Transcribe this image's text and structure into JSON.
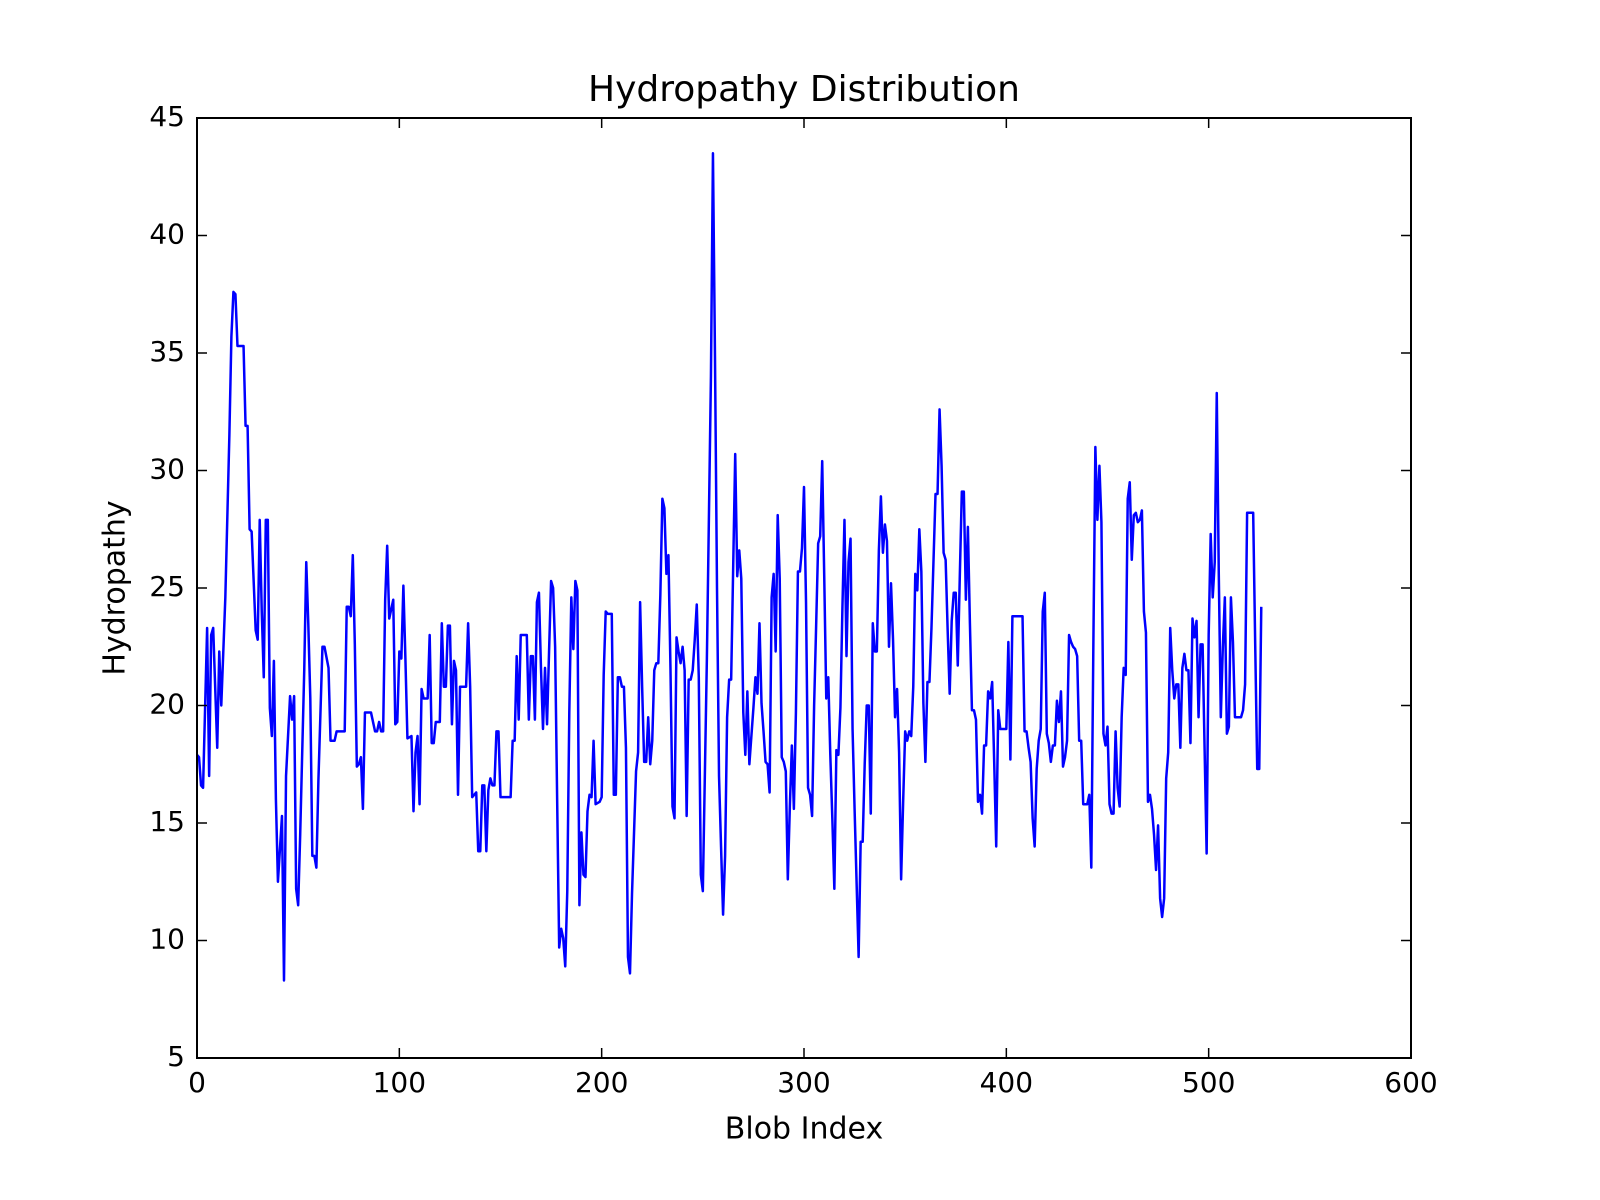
{
  "chart_data": {
    "type": "line",
    "title": "Hydropathy Distribution",
    "xlabel": "Blob Index",
    "ylabel": "Hydropathy",
    "x": [
      0,
      1,
      2,
      3,
      5,
      6,
      7,
      8,
      10,
      11,
      12,
      14,
      16,
      17,
      18,
      19,
      20,
      23,
      24,
      25,
      26,
      27,
      29,
      30,
      31,
      32,
      33,
      34,
      35,
      36,
      37,
      38,
      39,
      40,
      42,
      43,
      44,
      46,
      47,
      48,
      49,
      50,
      51,
      53,
      54,
      55,
      56,
      57,
      58,
      59,
      60,
      62,
      63,
      65,
      66,
      68,
      69,
      73,
      74,
      75,
      76,
      77,
      78,
      79,
      80,
      81,
      82,
      83,
      86,
      88,
      89,
      90,
      91,
      92,
      93,
      94,
      95,
      97,
      98,
      99,
      100,
      101,
      102,
      103,
      104,
      106,
      107,
      108,
      109,
      110,
      111,
      112,
      114,
      115,
      116,
      117,
      118,
      120,
      121,
      122,
      123,
      124,
      125,
      126,
      127,
      128,
      129,
      130,
      133,
      134,
      135,
      136,
      137,
      138,
      139,
      140,
      141,
      142,
      143,
      144,
      145,
      146,
      147,
      148,
      149,
      150,
      155,
      156,
      157,
      158,
      159,
      160,
      163,
      164,
      165,
      166,
      167,
      168,
      169,
      170,
      171,
      172,
      173,
      174,
      175,
      176,
      177,
      178,
      179,
      180,
      181,
      182,
      183,
      184,
      185,
      186,
      187,
      188,
      189,
      190,
      191,
      192,
      193,
      194,
      195,
      196,
      197,
      199,
      200,
      201,
      202,
      203,
      205,
      206,
      207,
      208,
      209,
      210,
      211,
      212,
      213,
      214,
      215,
      217,
      218,
      219,
      220,
      221,
      222,
      223,
      224,
      225,
      226,
      227,
      228,
      229,
      230,
      231,
      232,
      233,
      234,
      235,
      236,
      237,
      238,
      239,
      240,
      241,
      242,
      243,
      244,
      245,
      246,
      247,
      248,
      249,
      250,
      252,
      254,
      255,
      256,
      257,
      258,
      259,
      260,
      261,
      262,
      263,
      264,
      266,
      267,
      268,
      269,
      270,
      271,
      272,
      273,
      274,
      275,
      276,
      277,
      278,
      279,
      280,
      281,
      282,
      283,
      284,
      285,
      286,
      287,
      288,
      289,
      290,
      291,
      292,
      293,
      294,
      295,
      296,
      297,
      298,
      299,
      300,
      301,
      302,
      303,
      304,
      305,
      306,
      307,
      308,
      309,
      310,
      311,
      312,
      313,
      314,
      315,
      316,
      317,
      318,
      319,
      320,
      321,
      322,
      323,
      324,
      325,
      327,
      328,
      329,
      330,
      331,
      332,
      333,
      334,
      335,
      336,
      337,
      338,
      339,
      340,
      341,
      342,
      343,
      344,
      345,
      346,
      347,
      348,
      349,
      350,
      351,
      352,
      353,
      354,
      355,
      356,
      357,
      358,
      359,
      360,
      361,
      362,
      363,
      365,
      366,
      367,
      368,
      369,
      370,
      371,
      372,
      373,
      374,
      375,
      376,
      377,
      378,
      379,
      380,
      381,
      382,
      383,
      384,
      385,
      386,
      387,
      388,
      389,
      390,
      391,
      392,
      393,
      394,
      395,
      396,
      397,
      400,
      401,
      402,
      403,
      408,
      409,
      410,
      411,
      412,
      413,
      414,
      415,
      416,
      417,
      418,
      419,
      420,
      421,
      422,
      423,
      424,
      425,
      426,
      427,
      428,
      429,
      430,
      431,
      432,
      433,
      434,
      435,
      436,
      437,
      438,
      440,
      441,
      442,
      443,
      444,
      445,
      446,
      447,
      448,
      449,
      450,
      451,
      452,
      453,
      454,
      455,
      456,
      457,
      458,
      459,
      460,
      461,
      462,
      463,
      464,
      465,
      466,
      467,
      468,
      469,
      470,
      471,
      472,
      473,
      474,
      475,
      476,
      477,
      478,
      479,
      480,
      481,
      482,
      483,
      484,
      485,
      486,
      487,
      488,
      489,
      490,
      491,
      492,
      493,
      494,
      495,
      496,
      497,
      498,
      499,
      500,
      501,
      502,
      503,
      504,
      505,
      506,
      507,
      508,
      509,
      510,
      511,
      512,
      513,
      516,
      517,
      518,
      519,
      522,
      523,
      524,
      525,
      526
    ],
    "values": [
      17.9,
      17.8,
      16.6,
      16.5,
      23.3,
      17,
      23,
      23.3,
      18.2,
      22.3,
      20,
      24.6,
      31.5,
      35.7,
      37.6,
      37.5,
      35.3,
      35.3,
      31.9,
      31.9,
      27.5,
      27.4,
      23.2,
      22.8,
      27.9,
      24,
      21.2,
      27.9,
      27.9,
      19.9,
      18.7,
      21.9,
      16,
      12.5,
      15.3,
      8.3,
      17,
      20.4,
      19.4,
      20.4,
      12.2,
      11.5,
      14.5,
      21.5,
      26.1,
      23.5,
      20.3,
      13.6,
      13.6,
      13.1,
      16.8,
      22.5,
      22.5,
      21.6,
      18.5,
      18.5,
      18.9,
      18.9,
      24.2,
      24.2,
      23.8,
      26.4,
      22.6,
      17.4,
      17.5,
      17.8,
      15.6,
      19.7,
      19.7,
      18.9,
      18.9,
      19.3,
      18.9,
      18.9,
      24.5,
      26.8,
      23.7,
      24.5,
      19.2,
      19.3,
      22.3,
      22,
      25.1,
      22,
      18.6,
      18.7,
      15.5,
      18,
      18.7,
      15.8,
      20.7,
      20.3,
      20.3,
      23,
      18.4,
      18.4,
      19.3,
      19.3,
      23.5,
      20.8,
      20.8,
      23.4,
      23.4,
      19.2,
      21.9,
      21.5,
      16.2,
      20.8,
      20.8,
      23.5,
      20.8,
      16.1,
      16.2,
      16.3,
      13.8,
      13.8,
      16.6,
      16.6,
      13.8,
      16.4,
      16.9,
      16.6,
      16.6,
      18.9,
      18.9,
      16.1,
      16.1,
      18.5,
      18.5,
      22.1,
      19.4,
      23,
      23,
      19.4,
      22.1,
      22.1,
      19.4,
      24.4,
      24.8,
      21.6,
      19,
      21.6,
      19.2,
      22.3,
      25.3,
      25,
      22.5,
      16,
      9.7,
      10.5,
      10.1,
      8.9,
      12.1,
      19.7,
      24.6,
      22.4,
      25.3,
      24.9,
      11.5,
      14.6,
      12.8,
      12.7,
      15.5,
      16.2,
      16.1,
      18.5,
      15.8,
      15.9,
      16.1,
      21.3,
      24,
      23.9,
      23.9,
      16.2,
      16.2,
      21.2,
      21.2,
      20.8,
      20.8,
      18.2,
      9.3,
      8.6,
      12,
      17.2,
      18,
      24.4,
      20.8,
      17.6,
      17.6,
      19.5,
      17.5,
      18.5,
      21.5,
      21.8,
      21.8,
      24.7,
      28.8,
      28.4,
      25.6,
      26.4,
      21.6,
      15.7,
      15.2,
      22.9,
      22.3,
      21.8,
      22.5,
      21.5,
      15.3,
      21.1,
      21.1,
      21.5,
      22.8,
      24.3,
      21.2,
      12.8,
      12.1,
      22,
      34,
      43.5,
      34.9,
      25,
      17,
      14,
      11.1,
      13.6,
      19.5,
      21.1,
      21.1,
      30.7,
      25.5,
      26.6,
      25.4,
      19.7,
      17.9,
      20.6,
      17.5,
      18.7,
      19.9,
      21.2,
      20.5,
      23.5,
      20.1,
      18.9,
      17.6,
      17.5,
      16.3,
      24.6,
      25.6,
      22.3,
      28.1,
      25.4,
      17.8,
      17.6,
      17.2,
      12.6,
      15.7,
      18.3,
      15.6,
      19.7,
      25.7,
      25.7,
      26.7,
      29.3,
      24.4,
      16.5,
      16.2,
      15.3,
      20,
      23.4,
      26.9,
      27.2,
      30.4,
      25.5,
      20.3,
      21.2,
      17.9,
      15.2,
      12.2,
      18.1,
      17.9,
      19.9,
      24.2,
      27.9,
      22.1,
      26.1,
      27.1,
      19,
      15.6,
      9.3,
      14.2,
      14.2,
      17.5,
      20,
      20,
      15.4,
      23.5,
      22.3,
      22.3,
      26.6,
      28.9,
      26.5,
      27.7,
      27,
      22.5,
      25.2,
      22.8,
      19.5,
      20.7,
      18,
      12.6,
      15.9,
      18.9,
      18.5,
      18.9,
      18.7,
      20.8,
      25.6,
      24.9,
      27.5,
      25.7,
      20.1,
      17.6,
      21,
      21,
      23.3,
      29,
      29,
      32.6,
      30.2,
      26.5,
      26.2,
      23.2,
      20.5,
      23.6,
      24.8,
      24.8,
      21.7,
      25.5,
      29.1,
      29.1,
      24.5,
      27.6,
      23.5,
      19.8,
      19.8,
      19.4,
      15.9,
      16.2,
      15.4,
      18.3,
      18.3,
      20.6,
      20.3,
      21,
      17.6,
      14,
      19.8,
      19,
      19,
      22.7,
      17.7,
      23.8,
      23.8,
      18.9,
      18.9,
      18.2,
      17.6,
      15.2,
      14,
      17.3,
      18.5,
      19,
      24,
      24.8,
      18.8,
      18.4,
      17.6,
      18.3,
      18.3,
      20.2,
      19.3,
      20.6,
      17.4,
      17.8,
      18.5,
      23,
      22.7,
      22.5,
      22.4,
      22.1,
      18.5,
      18.5,
      15.8,
      15.8,
      16.2,
      13.1,
      22.5,
      31,
      27.9,
      30.2,
      27.8,
      18.8,
      18.3,
      19.1,
      15.8,
      15.4,
      15.4,
      18.9,
      16.5,
      15.7,
      19.5,
      21.6,
      21.3,
      28.8,
      29.5,
      26.2,
      28.1,
      28.2,
      27.8,
      27.9,
      28.3,
      24,
      23.1,
      15.9,
      16.2,
      15.6,
      14.5,
      13,
      14.9,
      11.8,
      11,
      11.8,
      16.9,
      18,
      23.3,
      21.5,
      20.3,
      20.9,
      20.9,
      18.2,
      21.6,
      22.2,
      21.5,
      21.5,
      18.4,
      23.7,
      22.9,
      23.6,
      19.5,
      22.6,
      22.6,
      18.1,
      13.7,
      23,
      27.3,
      24.6,
      26.1,
      33.3,
      25.6,
      19.5,
      22.5,
      24.6,
      18.8,
      19.1,
      24.6,
      22.7,
      19.5,
      19.5,
      19.8,
      20.9,
      28.2,
      28.2,
      22.6,
      17.3,
      17.3,
      24.2
    ],
    "color": "#0000ff",
    "xlim": [
      0,
      600
    ],
    "xticks": [
      0,
      100,
      200,
      300,
      400,
      500,
      600
    ],
    "ylim": [
      5,
      45
    ],
    "yticks": [
      5,
      10,
      15,
      20,
      25,
      30,
      35,
      40,
      45
    ]
  }
}
